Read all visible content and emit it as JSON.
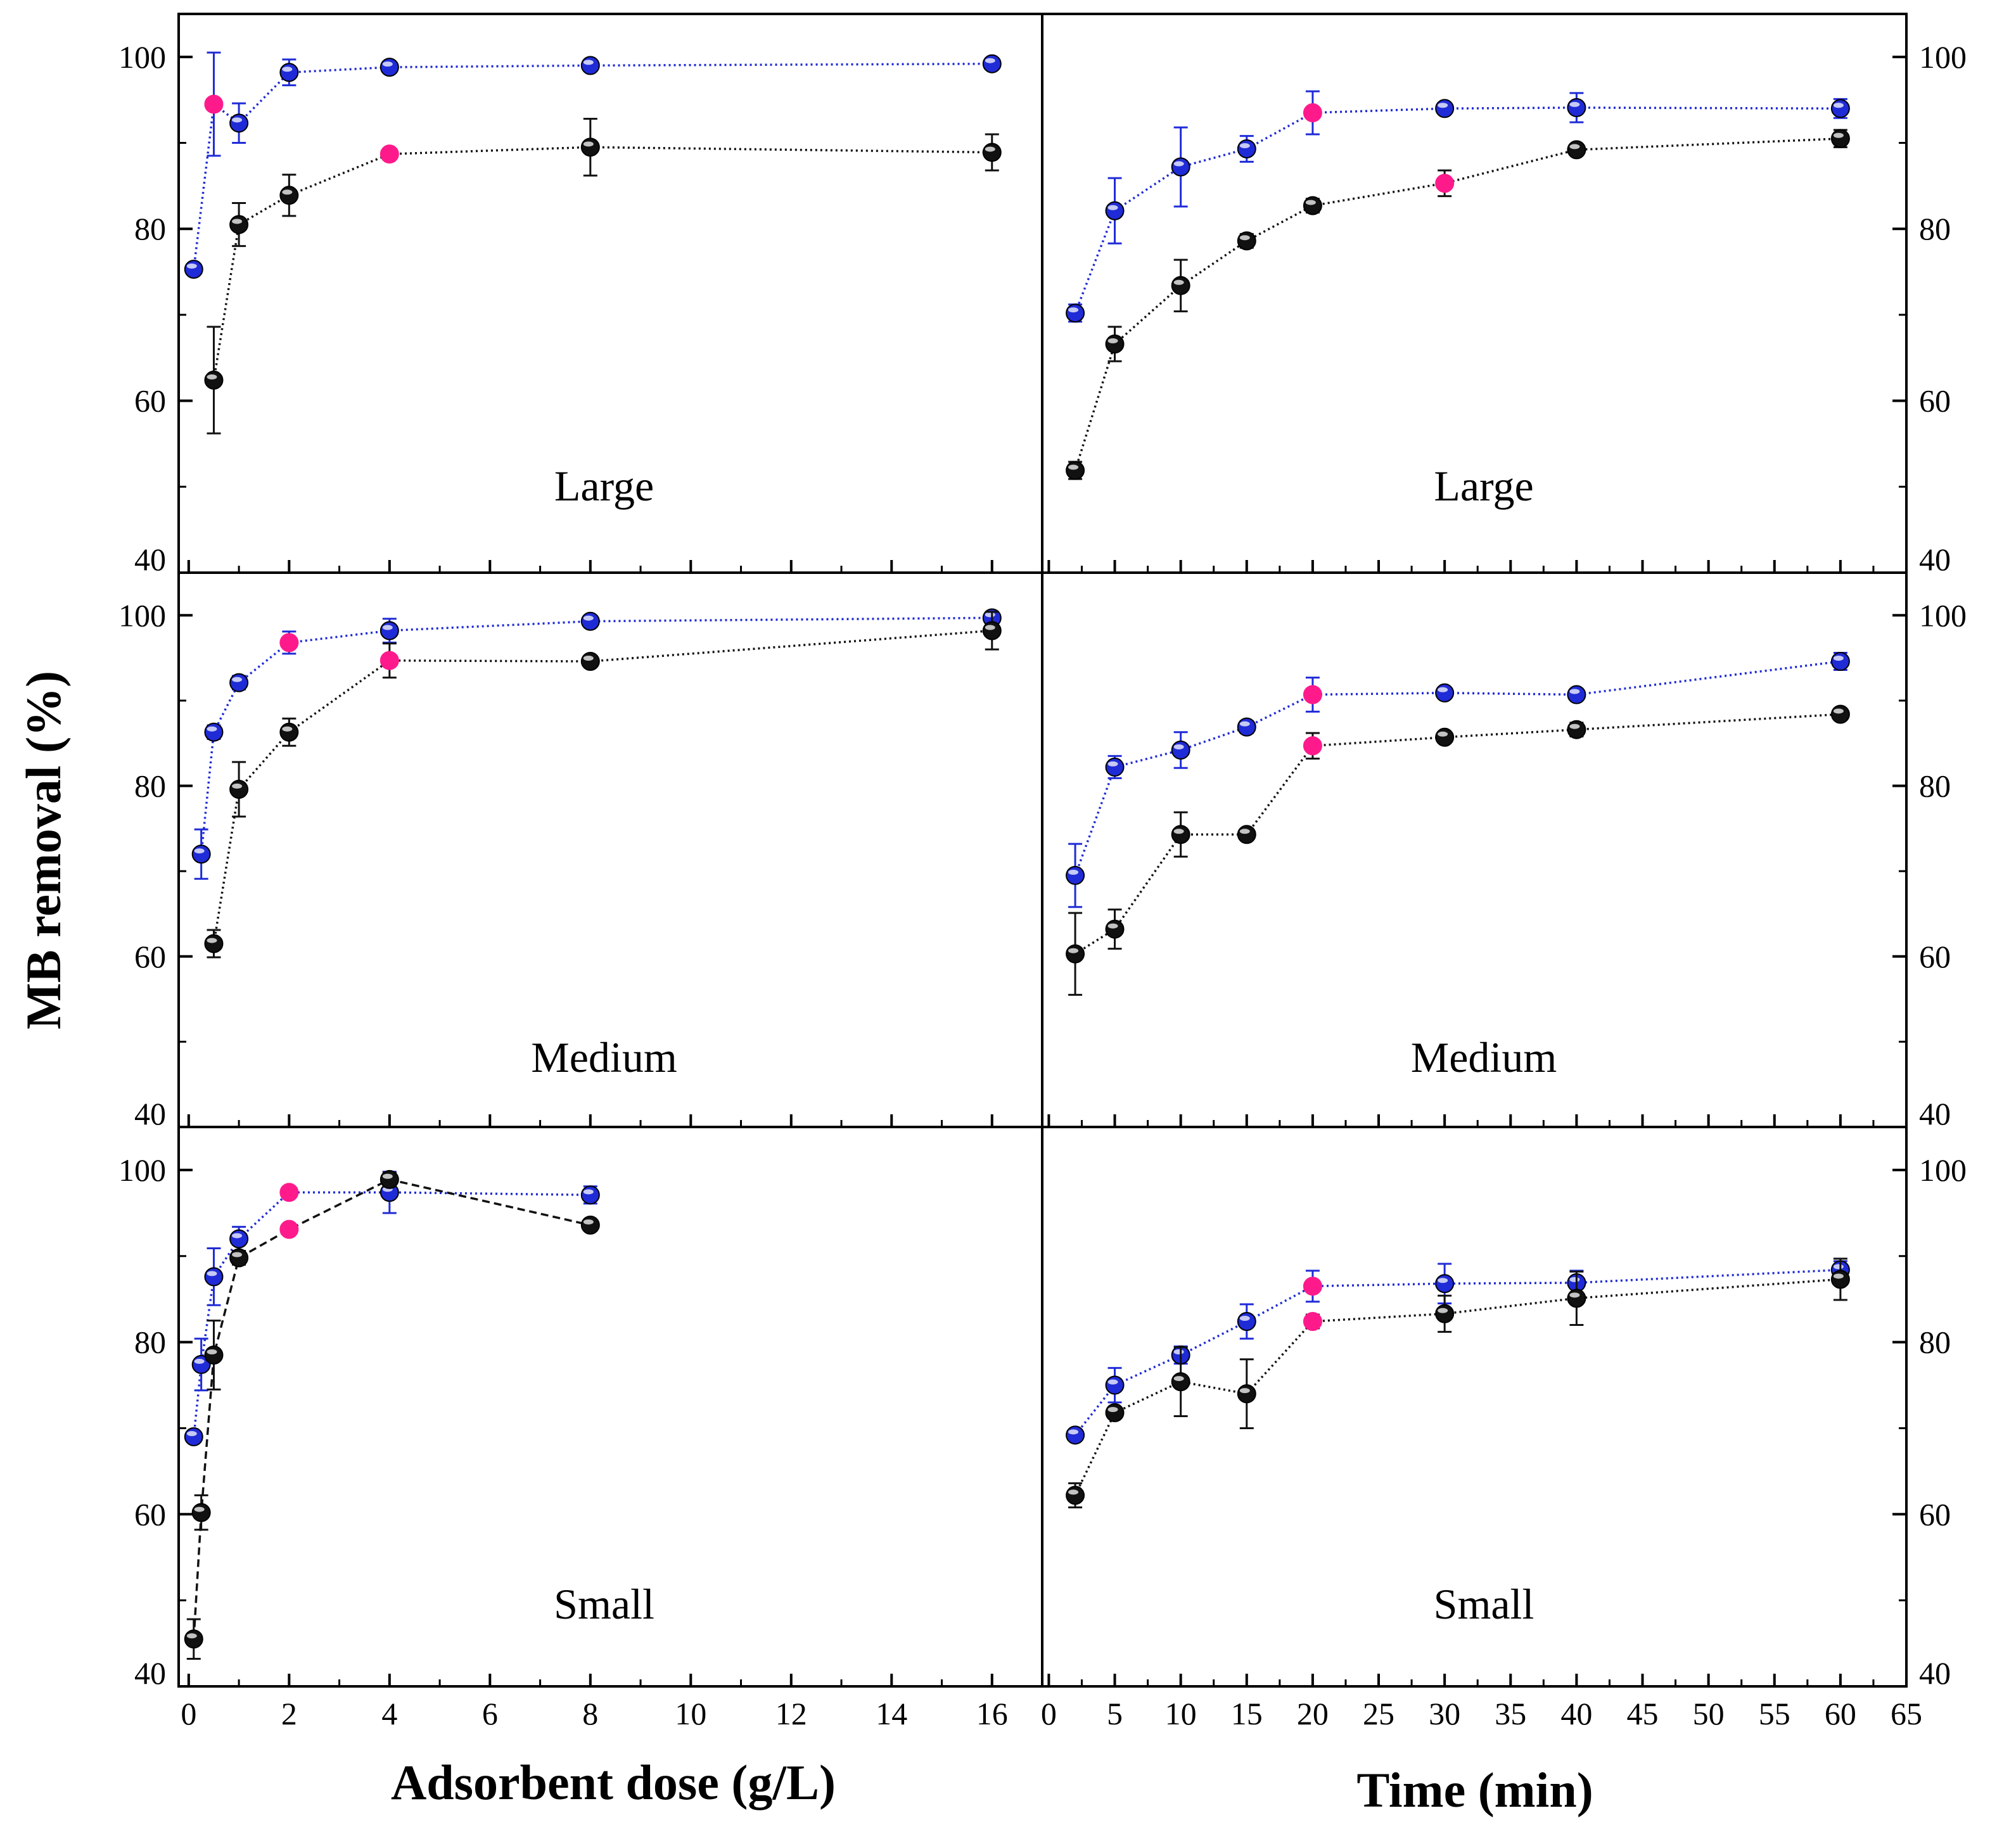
{
  "chart_data": {
    "type": "line",
    "ylabel": "MB removal (%)",
    "ylim": [
      40,
      105
    ],
    "yticks": [
      40,
      60,
      80,
      100
    ],
    "panels": [
      {
        "id": "dose-large",
        "label": "Large",
        "xlabel": "Adsorbent dose (g/L)",
        "xlim": [
          -0.2,
          17
        ],
        "ylim": [
          40,
          105
        ],
        "series": [
          {
            "name": "blue",
            "color": "#1f2bd6",
            "line": "dotted",
            "x": [
              0.1,
              0.5,
              1,
              2,
              4,
              8,
              16
            ],
            "y": [
              75.3,
              94.5,
              92.3,
              98.2,
              98.8,
              99.0,
              99.2
            ],
            "err": [
              0.6,
              6,
              2.3,
              1.5,
              0.5,
              0.5,
              0.5
            ],
            "highlight": [
              false,
              true,
              false,
              false,
              false,
              false,
              false
            ]
          },
          {
            "name": "black",
            "color": "#111111",
            "line": "dotted",
            "x": [
              0.5,
              1,
              2,
              4,
              8,
              16
            ],
            "y": [
              62.4,
              80.5,
              83.9,
              88.7,
              89.5,
              88.9
            ],
            "err": [
              6.2,
              2.5,
              2.4,
              0.5,
              3.3,
              2.1
            ],
            "highlight": [
              false,
              false,
              false,
              true,
              false,
              false
            ]
          }
        ]
      },
      {
        "id": "time-large",
        "label": "Large",
        "xlabel": "Time (min)",
        "xlim": [
          -0.5,
          65
        ],
        "ylim": [
          40,
          105
        ],
        "series": [
          {
            "name": "blue",
            "color": "#1f2bd6",
            "line": "dotted",
            "x": [
              2,
              5,
              10,
              15,
              20,
              30,
              40,
              60
            ],
            "y": [
              70.2,
              82.1,
              87.2,
              89.3,
              93.5,
              94.0,
              94.1,
              94.0
            ],
            "err": [
              1.0,
              3.8,
              4.6,
              1.5,
              2.5,
              0.6,
              1.7,
              1.1
            ],
            "highlight": [
              false,
              false,
              false,
              false,
              true,
              false,
              false,
              false
            ]
          },
          {
            "name": "black",
            "color": "#111111",
            "line": "dotted",
            "x": [
              2,
              5,
              10,
              15,
              20,
              30,
              40,
              60
            ],
            "y": [
              51.9,
              66.6,
              73.4,
              78.6,
              82.7,
              85.3,
              89.2,
              90.5
            ],
            "err": [
              1.0,
              2.0,
              3.0,
              0.8,
              0.8,
              1.5,
              0.5,
              1.0
            ],
            "highlight": [
              false,
              false,
              false,
              false,
              false,
              true,
              false,
              false
            ]
          }
        ]
      },
      {
        "id": "dose-medium",
        "label": "Medium",
        "xlabel": "Adsorbent dose (g/L)",
        "xlim": [
          -0.2,
          17
        ],
        "ylim": [
          40,
          105
        ],
        "series": [
          {
            "name": "blue",
            "color": "#1f2bd6",
            "line": "dotted",
            "x": [
              0.25,
              0.5,
              1,
              2,
              4,
              8,
              16
            ],
            "y": [
              72.0,
              86.3,
              92.1,
              96.8,
              98.2,
              99.3,
              99.7
            ],
            "err": [
              2.9,
              0.8,
              0.8,
              1.3,
              1.4,
              0.5,
              0.6
            ],
            "highlight": [
              false,
              false,
              false,
              true,
              false,
              false,
              false
            ]
          },
          {
            "name": "black",
            "color": "#111111",
            "line": "dotted",
            "x": [
              0.5,
              1,
              2,
              4,
              8,
              16
            ],
            "y": [
              61.5,
              79.6,
              86.3,
              94.7,
              94.6,
              98.2
            ],
            "err": [
              1.6,
              3.2,
              1.6,
              2.0,
              0.5,
              2.2
            ],
            "highlight": [
              false,
              false,
              false,
              true,
              false,
              false
            ]
          }
        ]
      },
      {
        "id": "time-medium",
        "label": "Medium",
        "xlabel": "Time (min)",
        "xlim": [
          -0.5,
          65
        ],
        "ylim": [
          40,
          105
        ],
        "series": [
          {
            "name": "blue",
            "color": "#1f2bd6",
            "line": "dotted",
            "x": [
              2,
              5,
              10,
              15,
              20,
              30,
              40,
              60
            ],
            "y": [
              69.5,
              82.2,
              84.2,
              86.9,
              90.7,
              90.9,
              90.7,
              94.6
            ],
            "err": [
              3.7,
              1.3,
              2.1,
              0.7,
              2.0,
              0.6,
              0.6,
              1.0
            ],
            "highlight": [
              false,
              false,
              false,
              false,
              true,
              false,
              false,
              false
            ]
          },
          {
            "name": "black",
            "color": "#111111",
            "line": "dotted",
            "x": [
              2,
              5,
              10,
              15,
              20,
              30,
              40,
              60
            ],
            "y": [
              60.3,
              63.2,
              74.3,
              74.3,
              84.7,
              85.7,
              86.6,
              88.4
            ],
            "err": [
              4.8,
              2.3,
              2.6,
              0,
              1.5,
              0.5,
              0.8,
              0.6
            ],
            "highlight": [
              false,
              false,
              false,
              false,
              true,
              false,
              false,
              false
            ]
          }
        ]
      },
      {
        "id": "dose-small",
        "label": "Small",
        "xlabel": "Adsorbent dose (g/L)",
        "xlim": [
          -0.2,
          17
        ],
        "ylim": [
          40,
          105
        ],
        "series": [
          {
            "name": "blue",
            "color": "#1f2bd6",
            "line": "dotted",
            "x": [
              0.1,
              0.25,
              0.5,
              1,
              2,
              4,
              8
            ],
            "y": [
              69.0,
              77.4,
              87.6,
              92.0,
              97.4,
              97.4,
              97.1
            ],
            "err": [
              0.5,
              3.0,
              3.3,
              1.4,
              0.6,
              2.4,
              1.0
            ],
            "highlight": [
              false,
              false,
              false,
              false,
              true,
              false,
              false
            ]
          },
          {
            "name": "black",
            "color": "#111111",
            "line": "dashed",
            "x": [
              0.1,
              0.25,
              0.5,
              1,
              2,
              4,
              8
            ],
            "y": [
              45.5,
              60.2,
              78.5,
              89.8,
              93.1,
              98.9,
              93.6
            ],
            "err": [
              2.3,
              2.0,
              4.0,
              0.8,
              0.5,
              0.8,
              0.5
            ],
            "highlight": [
              false,
              false,
              false,
              false,
              true,
              false,
              false
            ]
          }
        ]
      },
      {
        "id": "time-small",
        "label": "Small",
        "xlabel": "Time (min)",
        "xlim": [
          -0.5,
          65
        ],
        "ylim": [
          40,
          105
        ],
        "series": [
          {
            "name": "blue",
            "color": "#1f2bd6",
            "line": "dotted",
            "x": [
              2,
              5,
              10,
              15,
              20,
              30,
              40,
              60
            ],
            "y": [
              69.2,
              75.0,
              78.5,
              82.4,
              86.5,
              86.8,
              86.9,
              88.4
            ],
            "err": [
              0.6,
              2.0,
              1.0,
              2.0,
              1.8,
              2.3,
              1.4,
              1.0
            ],
            "highlight": [
              false,
              false,
              false,
              false,
              true,
              false,
              false,
              false
            ]
          },
          {
            "name": "black",
            "color": "#111111",
            "line": "dotted",
            "x": [
              2,
              5,
              10,
              15,
              20,
              30,
              40,
              60
            ],
            "y": [
              62.2,
              71.8,
              75.4,
              74.0,
              82.4,
              83.3,
              85.1,
              87.3
            ],
            "err": [
              1.4,
              0.6,
              4.0,
              4.0,
              0.8,
              2.1,
              3.1,
              2.4
            ],
            "highlight": [
              false,
              false,
              false,
              false,
              true,
              false,
              false,
              false
            ]
          }
        ]
      }
    ],
    "xaxes": {
      "dose": {
        "ticks": [
          0,
          2,
          4,
          6,
          8,
          10,
          12,
          14,
          16
        ],
        "label": "Adsorbent dose (g/L)"
      },
      "time": {
        "ticks": [
          0,
          5,
          10,
          15,
          20,
          25,
          30,
          35,
          40,
          45,
          50,
          55,
          60,
          65
        ],
        "label": "Time (min)"
      }
    },
    "highlight_color": "#ff1a8c"
  }
}
